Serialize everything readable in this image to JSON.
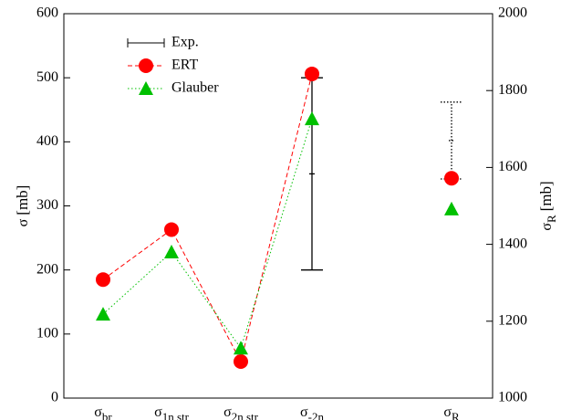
{
  "chart_data": {
    "type": "errorbar-scatter",
    "categories": [
      {
        "base": "σ",
        "sub": "br"
      },
      {
        "base": "σ",
        "sub": "1n str"
      },
      {
        "base": "σ",
        "sub": "2n str"
      },
      {
        "base": "σ",
        "sub": "-2n"
      },
      {
        "base": "σ",
        "sub": "R"
      }
    ],
    "ylabel": {
      "base": "σ",
      "unit": "[mb]"
    },
    "y2label": {
      "base": "σ",
      "sub": "R",
      "unit": "[mb]"
    },
    "ylim": [
      0,
      600
    ],
    "yticks": [
      0,
      100,
      200,
      300,
      400,
      500,
      600
    ],
    "y2lim": [
      1000,
      2000
    ],
    "y2ticks": [
      1000,
      1200,
      1400,
      1600,
      1800,
      2000
    ],
    "legend": "upper left",
    "series": [
      {
        "name": "Exp.",
        "color": "#000000",
        "marker": "errorbar",
        "line_style": "none",
        "values": [
          null,
          null,
          null,
          350,
          null
        ],
        "errors": [
          null,
          null,
          null,
          150,
          null
        ],
        "values_y2": [
          null,
          null,
          null,
          null,
          1670
        ],
        "errors_y2": [
          null,
          null,
          null,
          null,
          100
        ]
      },
      {
        "name": "ERT",
        "color": "#ff0000",
        "marker": "circle",
        "line_style": "dashed",
        "values": [
          185,
          263,
          57,
          506,
          null
        ],
        "values_y2": [
          null,
          null,
          null,
          null,
          1572
        ]
      },
      {
        "name": "Glauber",
        "color": "#00c000",
        "marker": "triangle",
        "line_style": "dotted",
        "values": [
          131,
          228,
          78,
          436,
          null
        ],
        "values_y2": [
          null,
          null,
          null,
          null,
          1492
        ]
      }
    ]
  }
}
